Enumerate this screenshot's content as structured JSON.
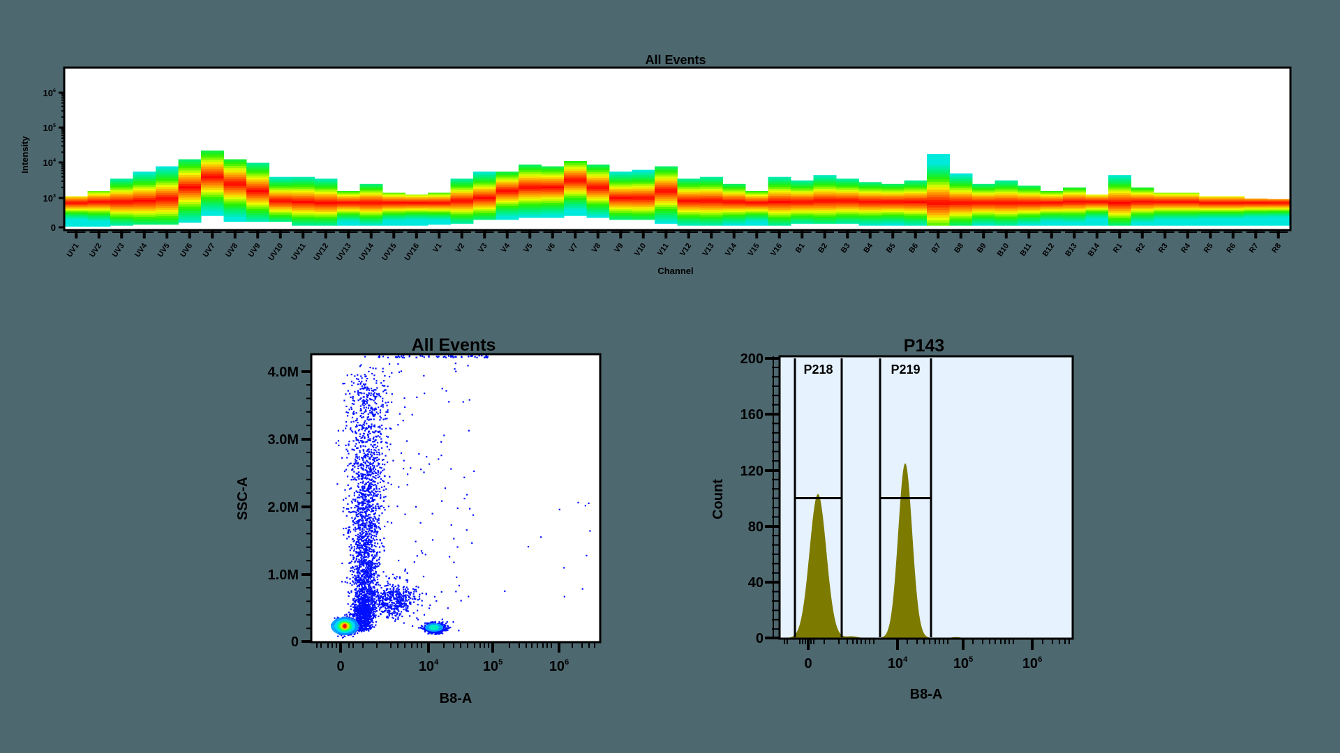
{
  "page": {
    "background": "#4e6870"
  },
  "chart_data": [
    {
      "id": "spectrum",
      "type": "heatmap",
      "title": "All Events",
      "xlabel": "Channel",
      "ylabel": "Intensity",
      "yscale": "biexponential",
      "y_ticks": [
        "0",
        "10^3",
        "10^4",
        "10^5",
        "10^6"
      ],
      "grid": false,
      "categories": [
        "UV1",
        "UV2",
        "UV3",
        "UV4",
        "UV5",
        "UV6",
        "UV7",
        "UV8",
        "UV9",
        "UV10",
        "UV11",
        "UV12",
        "UV13",
        "UV14",
        "UV15",
        "UV16",
        "V1",
        "V2",
        "V3",
        "V4",
        "V5",
        "V6",
        "V7",
        "V8",
        "V9",
        "V10",
        "V11",
        "V12",
        "V13",
        "V14",
        "V15",
        "V16",
        "B1",
        "B2",
        "B3",
        "B4",
        "B5",
        "B6",
        "B7",
        "B8",
        "B9",
        "B10",
        "B11",
        "B12",
        "B13",
        "B14",
        "R1",
        "R2",
        "R3",
        "R4",
        "R5",
        "R6",
        "R7",
        "R8"
      ],
      "series": [
        {
          "name": "max_intensity_log10",
          "values": [
            3.05,
            3.2,
            3.55,
            3.75,
            3.9,
            4.1,
            4.35,
            4.1,
            4.0,
            3.6,
            3.6,
            3.55,
            3.2,
            3.4,
            3.15,
            3.1,
            3.15,
            3.55,
            3.75,
            3.75,
            3.95,
            3.9,
            4.05,
            3.95,
            3.75,
            3.8,
            3.9,
            3.55,
            3.6,
            3.4,
            3.2,
            3.6,
            3.5,
            3.65,
            3.55,
            3.45,
            3.4,
            3.5,
            4.25,
            3.7,
            3.4,
            3.5,
            3.35,
            3.2,
            3.3,
            3.1,
            3.65,
            3.3,
            3.15,
            3.15,
            3.05,
            3.05,
            2.95,
            2.9
          ]
        },
        {
          "name": "min_intensity_log10",
          "values": [
            0.1,
            0.1,
            0.2,
            0.3,
            0.3,
            0.5,
            1.2,
            0.6,
            0.6,
            0.6,
            0.2,
            0.2,
            0.2,
            0.2,
            0.2,
            0.2,
            0.3,
            0.4,
            0.8,
            0.8,
            1.0,
            1.0,
            1.2,
            1.0,
            0.8,
            0.8,
            0.4,
            0.2,
            0.2,
            0.2,
            0.2,
            0.2,
            0.4,
            0.4,
            0.4,
            0.2,
            0.2,
            0.2,
            0.2,
            0.2,
            0.2,
            0.2,
            0.2,
            0.2,
            0.2,
            0.2,
            0.2,
            0.2,
            0.2,
            0.2,
            0.2,
            0.2,
            0.2,
            0.2
          ]
        },
        {
          "name": "peak_density_log10",
          "values": [
            2.5,
            2.6,
            2.6,
            2.7,
            2.9,
            3.3,
            3.6,
            3.4,
            3.2,
            2.7,
            2.6,
            2.5,
            2.5,
            2.5,
            2.5,
            2.5,
            2.5,
            2.7,
            3.0,
            3.2,
            3.3,
            3.3,
            3.5,
            3.3,
            3.0,
            3.0,
            3.2,
            2.7,
            2.7,
            2.6,
            2.5,
            2.6,
            2.6,
            2.7,
            2.7,
            2.6,
            2.6,
            2.6,
            2.5,
            2.5,
            2.5,
            2.5,
            2.5,
            2.5,
            2.6,
            2.6,
            2.5,
            2.6,
            2.6,
            2.6,
            2.5,
            2.5,
            2.5,
            2.5
          ]
        }
      ]
    },
    {
      "id": "scatter",
      "type": "scatter",
      "title": "All Events",
      "xlabel": "B8-A",
      "ylabel": "SSC-A",
      "x_ticks": [
        "0",
        "10^4",
        "10^5",
        "10^6"
      ],
      "y_ticks": [
        "0",
        "1.0M",
        "2.0M",
        "3.0M",
        "4.0M"
      ],
      "ylim": [
        0,
        4300000
      ],
      "populations": [
        {
          "name": "negative-lowSSC",
          "x_center": "≈0.5e3",
          "y_center": 200000,
          "relative_density": "highest"
        },
        {
          "name": "negative-highSSC-streak",
          "x_center": "≈2e3",
          "y_range": [
            300000,
            4200000
          ],
          "relative_density": "medium"
        },
        {
          "name": "intermediate-cluster",
          "x_center": "≈5e3",
          "y_center": 650000,
          "relative_density": "low"
        },
        {
          "name": "positive-lowSSC",
          "x_center": "≈1.2e4",
          "y_center": 200000,
          "relative_density": "medium-high"
        }
      ]
    },
    {
      "id": "histogram",
      "type": "area",
      "title": "P143",
      "xlabel": "B8-A",
      "ylabel": "Count",
      "x_ticks": [
        "0",
        "10^4",
        "10^5",
        "10^6"
      ],
      "y_ticks": [
        "0",
        "40",
        "80",
        "120",
        "160",
        "200"
      ],
      "ylim": [
        0,
        200
      ],
      "fill_color": "#7d7a00",
      "background": "#e6f2fd",
      "peaks": [
        {
          "x_position": "≈0.5e3",
          "count": 103
        },
        {
          "x_position": "≈1.2e4",
          "count": 125
        }
      ],
      "gates": [
        {
          "label": "P218",
          "level": 100
        },
        {
          "label": "P219",
          "level": 100
        }
      ]
    }
  ],
  "spectrum": {
    "title": "All Events",
    "xlabel": "Channel",
    "ylabel": "Intensity",
    "y_ticks": [
      {
        "base": "10",
        "exp": "6"
      },
      {
        "base": "10",
        "exp": "5"
      },
      {
        "base": "10",
        "exp": "4"
      },
      {
        "base": "10",
        "exp": "3"
      },
      {
        "base": "0",
        "exp": ""
      }
    ]
  },
  "scatter": {
    "title": "All Events",
    "xlabel": "B8-A",
    "ylabel": "SSC-A",
    "y_ticks": [
      "4.0M",
      "3.0M",
      "2.0M",
      "1.0M",
      "0"
    ],
    "x_ticks": [
      {
        "base": "0",
        "exp": ""
      },
      {
        "base": "10",
        "exp": "4"
      },
      {
        "base": "10",
        "exp": "5"
      },
      {
        "base": "10",
        "exp": "6"
      }
    ]
  },
  "histogram": {
    "title": "P143",
    "xlabel": "B8-A",
    "ylabel": "Count",
    "y_ticks": [
      "200",
      "160",
      "120",
      "80",
      "40",
      "0"
    ],
    "x_ticks": [
      {
        "base": "0",
        "exp": ""
      },
      {
        "base": "10",
        "exp": "4"
      },
      {
        "base": "10",
        "exp": "5"
      },
      {
        "base": "10",
        "exp": "6"
      }
    ],
    "gates": [
      {
        "label": "P218"
      },
      {
        "label": "P219"
      }
    ]
  }
}
